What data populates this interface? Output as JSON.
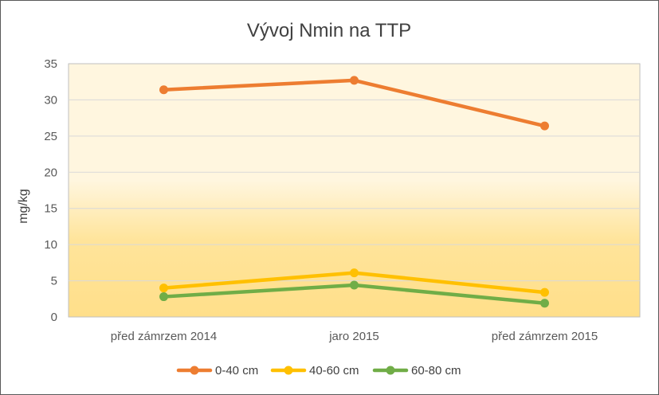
{
  "chart_data": {
    "type": "line",
    "title": "Vývoj Nmin na TTP",
    "xlabel": "",
    "ylabel": "mg/kg",
    "categories": [
      "před zámrzem 2014",
      "jaro 2015",
      "před zámrzem 2015"
    ],
    "ylim": [
      0,
      35
    ],
    "yticks": [
      0,
      5,
      10,
      15,
      20,
      25,
      30,
      35
    ],
    "grid": true,
    "legend_position": "bottom",
    "series": [
      {
        "name": "0-40 cm",
        "color": "#ED7D31",
        "values": [
          31.4,
          32.7,
          26.4
        ]
      },
      {
        "name": "40-60 cm",
        "color": "#FFC000",
        "values": [
          4.0,
          6.1,
          3.4
        ]
      },
      {
        "name": "60-80 cm",
        "color": "#70AD47",
        "values": [
          2.8,
          4.4,
          1.9
        ]
      }
    ],
    "plot_background": {
      "top_color": "#FFF6DF",
      "bottom_color": "#FFDF8A"
    }
  }
}
